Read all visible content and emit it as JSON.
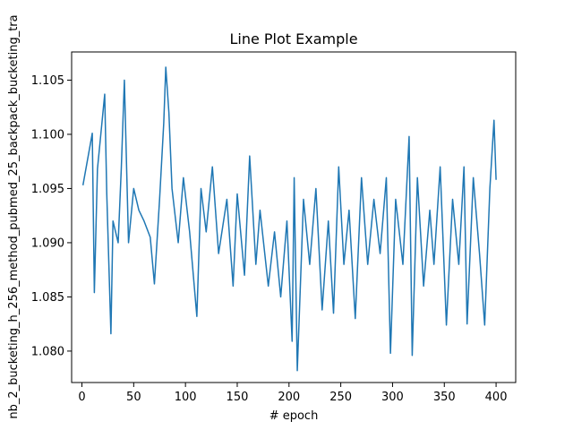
{
  "chart_data": {
    "type": "line",
    "title": "Line Plot Example",
    "xlabel": "# epoch",
    "ylabel": "nb_2_bucketing_h_256_method_pubmed_25_backpack_bucketing_tra",
    "xlim": [
      -9.95,
      418.95
    ],
    "ylim": [
      1.0771,
      1.1076
    ],
    "x_ticks": [
      0,
      50,
      100,
      150,
      200,
      250,
      300,
      350,
      400
    ],
    "x_tick_labels": [
      "0",
      "50",
      "100",
      "150",
      "200",
      "250",
      "300",
      "350",
      "400"
    ],
    "y_ticks": [
      1.08,
      1.085,
      1.09,
      1.095,
      1.1,
      1.105
    ],
    "y_tick_labels": [
      "1.080",
      "1.085",
      "1.090",
      "1.095",
      "1.100",
      "1.105"
    ],
    "grid": false,
    "series": [
      {
        "name": "",
        "color": "#1f77b4",
        "x": [
          1,
          10,
          12,
          15,
          22,
          24,
          28,
          30,
          35,
          38,
          41,
          45,
          50,
          55,
          60,
          66,
          70,
          75,
          79,
          81,
          84,
          87,
          93,
          98,
          104,
          111,
          115,
          120,
          126,
          132,
          140,
          146,
          150,
          157,
          162,
          168,
          172,
          180,
          186,
          192,
          198,
          203,
          205,
          208,
          214,
          220,
          226,
          232,
          238,
          243,
          248,
          253,
          258,
          264,
          270,
          276,
          282,
          288,
          294,
          298,
          303,
          310,
          316,
          319,
          324,
          330,
          336,
          340,
          346,
          352,
          358,
          364,
          369,
          372,
          378,
          384,
          389,
          394,
          398,
          400
        ],
        "y": [
          1.0953,
          1.1001,
          1.0854,
          1.0968,
          1.1037,
          1.0945,
          1.0816,
          1.092,
          1.09,
          1.0968,
          1.105,
          1.09,
          1.095,
          1.093,
          1.092,
          1.0905,
          1.0862,
          1.094,
          1.101,
          1.1062,
          1.102,
          1.095,
          1.09,
          1.096,
          1.091,
          1.0832,
          1.095,
          1.091,
          1.097,
          1.089,
          1.094,
          1.086,
          1.0945,
          1.087,
          1.098,
          1.088,
          1.093,
          1.086,
          1.091,
          1.085,
          1.092,
          1.0809,
          1.096,
          1.0782,
          1.094,
          1.088,
          1.095,
          1.0838,
          1.092,
          1.0835,
          1.097,
          1.088,
          1.093,
          1.083,
          1.096,
          1.088,
          1.094,
          1.089,
          1.096,
          1.0798,
          1.094,
          1.088,
          1.0998,
          1.0796,
          1.096,
          1.086,
          1.093,
          1.088,
          1.097,
          1.0824,
          1.094,
          1.088,
          1.097,
          1.0825,
          1.096,
          1.089,
          1.0824,
          1.095,
          1.1013,
          1.0958
        ]
      }
    ]
  }
}
